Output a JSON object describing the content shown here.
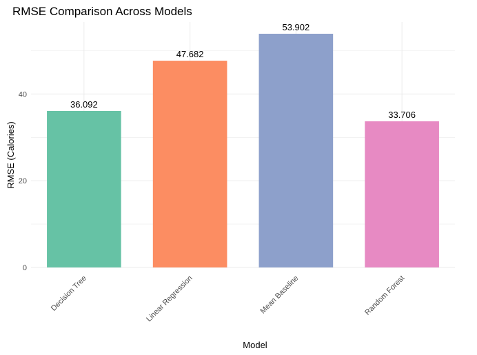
{
  "chart_data": {
    "type": "bar",
    "title": "RMSE Comparison Across Models",
    "xlabel": "Model",
    "ylabel": "RMSE (Calories)",
    "categories": [
      "Decision Tree",
      "Linear Regression",
      "Mean Baseline",
      "Random Forest"
    ],
    "values": [
      36.092,
      47.682,
      53.902,
      33.706
    ],
    "data_labels": [
      "36.092",
      "47.682",
      "53.902",
      "33.706"
    ],
    "colors": [
      "#66c2a5",
      "#fc8d62",
      "#8da0cb",
      "#e78ac3"
    ],
    "ylim": [
      0,
      56.6
    ],
    "yticks": [
      0,
      20,
      40
    ],
    "ytick_labels": [
      "0",
      "20",
      "40"
    ],
    "grid": true,
    "legend": "none"
  }
}
